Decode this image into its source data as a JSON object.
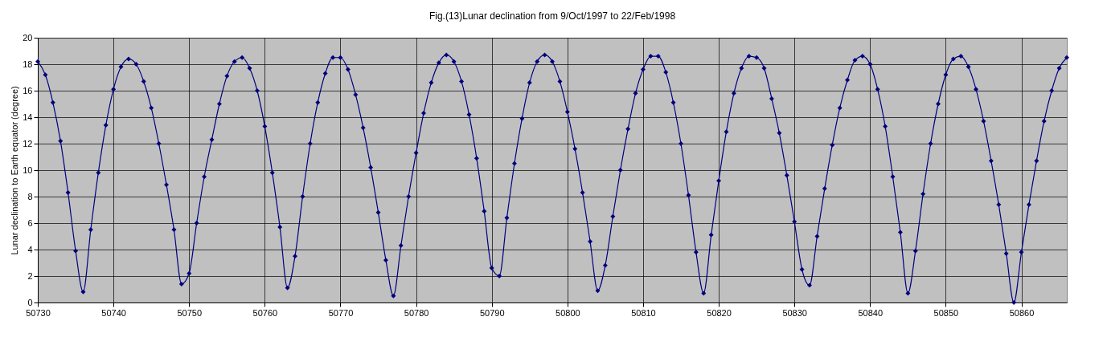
{
  "chart_data": {
    "type": "line",
    "title": "Fig.(13)Lunar declination from 9/Oct/1997  to 22/Feb/1998",
    "ylabel": "Lunar declination to Earth equator (degree)",
    "x": [
      50730,
      50731,
      50732,
      50733,
      50734,
      50735,
      50736,
      50737,
      50738,
      50739,
      50740,
      50741,
      50742,
      50743,
      50744,
      50745,
      50746,
      50747,
      50748,
      50749,
      50750,
      50751,
      50752,
      50753,
      50754,
      50755,
      50756,
      50757,
      50758,
      50759,
      50760,
      50761,
      50762,
      50763,
      50764,
      50765,
      50766,
      50767,
      50768,
      50769,
      50770,
      50771,
      50772,
      50773,
      50774,
      50775,
      50776,
      50777,
      50778,
      50779,
      50780,
      50781,
      50782,
      50783,
      50784,
      50785,
      50786,
      50787,
      50788,
      50789,
      50790,
      50791,
      50792,
      50793,
      50794,
      50795,
      50796,
      50797,
      50798,
      50799,
      50800,
      50801,
      50802,
      50803,
      50804,
      50805,
      50806,
      50807,
      50808,
      50809,
      50810,
      50811,
      50812,
      50813,
      50814,
      50815,
      50816,
      50817,
      50818,
      50819,
      50820,
      50821,
      50822,
      50823,
      50824,
      50825,
      50826,
      50827,
      50828,
      50829,
      50830,
      50831,
      50832,
      50833,
      50834,
      50835,
      50836,
      50837,
      50838,
      50839,
      50840,
      50841,
      50842,
      50843,
      50844,
      50845,
      50846,
      50847,
      50848,
      50849,
      50850,
      50851,
      50852,
      50853,
      50854,
      50855,
      50856,
      50857,
      50858,
      50859,
      50860,
      50861,
      50862,
      50863,
      50864,
      50865,
      50866
    ],
    "series": [
      {
        "color": "#000080",
        "values": [
          18.2,
          17.2,
          15.1,
          12.2,
          8.3,
          3.9,
          0.8,
          5.5,
          9.8,
          13.4,
          16.1,
          17.8,
          18.4,
          18.0,
          16.7,
          14.7,
          12.0,
          8.9,
          5.5,
          1.4,
          2.2,
          6.0,
          9.5,
          12.3,
          15.0,
          17.1,
          18.2,
          18.5,
          17.7,
          16.0,
          13.3,
          9.8,
          5.7,
          1.1,
          3.5,
          8.0,
          12.0,
          15.1,
          17.3,
          18.5,
          18.5,
          17.6,
          15.7,
          13.2,
          10.2,
          6.8,
          3.2,
          0.5,
          4.3,
          8.0,
          11.3,
          14.3,
          16.6,
          18.1,
          18.7,
          18.2,
          16.7,
          14.2,
          10.9,
          6.9,
          2.6,
          2.0,
          6.4,
          10.5,
          13.9,
          16.6,
          18.2,
          18.7,
          18.2,
          16.7,
          14.4,
          11.6,
          8.3,
          4.6,
          0.9,
          2.8,
          6.5,
          10.0,
          13.1,
          15.8,
          17.6,
          18.6,
          18.6,
          17.4,
          15.1,
          12.0,
          8.1,
          3.8,
          0.7,
          5.1,
          9.2,
          12.9,
          15.8,
          17.7,
          18.6,
          18.5,
          17.7,
          15.4,
          12.8,
          9.6,
          6.1,
          2.5,
          1.3,
          5.0,
          8.6,
          11.9,
          14.7,
          16.8,
          18.3,
          18.6,
          18.0,
          16.1,
          13.3,
          9.5,
          5.3,
          0.7,
          3.9,
          8.2,
          12.0,
          15.0,
          17.2,
          18.4,
          18.6,
          17.8,
          16.1,
          13.7,
          10.7,
          7.4,
          3.7,
          0.0,
          3.8,
          7.4,
          10.7,
          13.7,
          16.0,
          17.7,
          18.5
        ]
      }
    ],
    "xlim": [
      50730,
      50866
    ],
    "xticks": [
      50730,
      50740,
      50750,
      50760,
      50770,
      50780,
      50790,
      50800,
      50810,
      50820,
      50830,
      50840,
      50850,
      50860
    ],
    "ylim": [
      0,
      20
    ],
    "yticks": [
      0,
      2,
      4,
      6,
      8,
      10,
      12,
      14,
      16,
      18,
      20
    ],
    "grid": true,
    "marker": "diamond"
  }
}
